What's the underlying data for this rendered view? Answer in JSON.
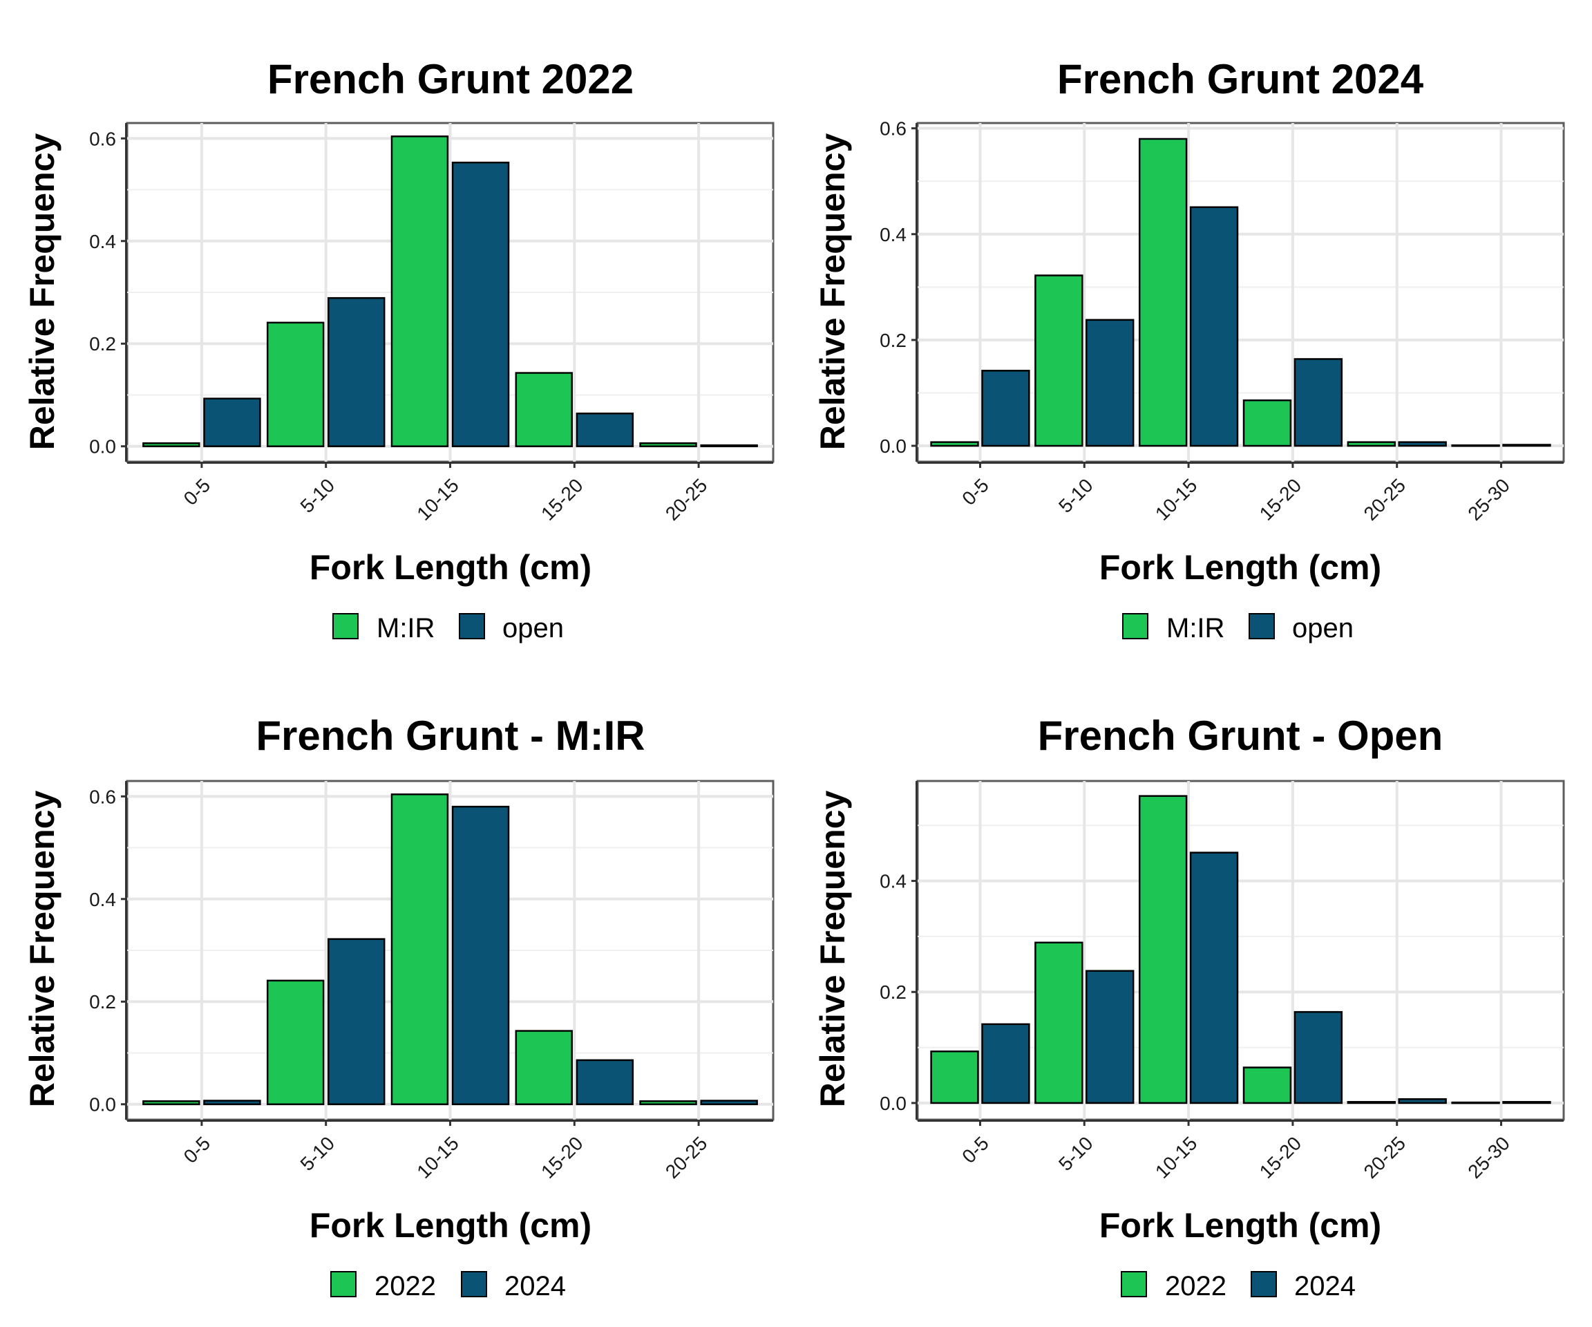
{
  "chart_data": [
    {
      "type": "bar",
      "title": "French Grunt 2022",
      "xlabel": "Fork Length (cm)",
      "ylabel": "Relative Frequency",
      "categories": [
        "0-5",
        "5-10",
        "10-15",
        "15-20",
        "20-25"
      ],
      "series": [
        {
          "name": "M:IR",
          "color": "#1dc654",
          "values": [
            0.006,
            0.241,
            0.604,
            0.143,
            0.006
          ]
        },
        {
          "name": "open",
          "color": "#0b5374",
          "values": [
            0.093,
            0.289,
            0.553,
            0.064,
            0.002
          ]
        }
      ],
      "ylim": [
        -0.03,
        0.63
      ],
      "yticks": [
        0.0,
        0.2,
        0.4,
        0.6
      ],
      "yticklabels": [
        "0.0",
        "0.2",
        "0.4",
        "0.6"
      ],
      "grid": true,
      "legend_position": "bottom"
    },
    {
      "type": "bar",
      "title": "French Grunt 2024",
      "xlabel": "Fork Length (cm)",
      "ylabel": "Relative Frequency",
      "categories": [
        "0-5",
        "5-10",
        "10-15",
        "15-20",
        "20-25",
        "25-30"
      ],
      "series": [
        {
          "name": "M:IR",
          "color": "#1dc654",
          "values": [
            0.007,
            0.322,
            0.58,
            0.086,
            0.007,
            0.001
          ]
        },
        {
          "name": "open",
          "color": "#0b5374",
          "values": [
            0.142,
            0.238,
            0.451,
            0.164,
            0.007,
            0.002
          ]
        }
      ],
      "ylim": [
        -0.03,
        0.61
      ],
      "yticks": [
        0.0,
        0.2,
        0.4,
        0.6
      ],
      "yticklabels": [
        "0.0",
        "0.2",
        "0.4",
        "0.6"
      ],
      "grid": true,
      "legend_position": "bottom"
    },
    {
      "type": "bar",
      "title": "French Grunt - M:IR",
      "xlabel": "Fork Length (cm)",
      "ylabel": "Relative Frequency",
      "categories": [
        "0-5",
        "5-10",
        "10-15",
        "15-20",
        "20-25"
      ],
      "series": [
        {
          "name": "2022",
          "color": "#1dc654",
          "values": [
            0.006,
            0.241,
            0.604,
            0.143,
            0.006
          ]
        },
        {
          "name": "2024",
          "color": "#0b5374",
          "values": [
            0.007,
            0.322,
            0.58,
            0.086,
            0.007
          ]
        }
      ],
      "ylim": [
        -0.03,
        0.63
      ],
      "yticks": [
        0.0,
        0.2,
        0.4,
        0.6
      ],
      "yticklabels": [
        "0.0",
        "0.2",
        "0.4",
        "0.6"
      ],
      "grid": true,
      "legend_position": "bottom"
    },
    {
      "type": "bar",
      "title": "French Grunt - Open",
      "xlabel": "Fork Length (cm)",
      "ylabel": "Relative Frequency",
      "categories": [
        "0-5",
        "5-10",
        "10-15",
        "15-20",
        "20-25",
        "25-30"
      ],
      "series": [
        {
          "name": "2022",
          "color": "#1dc654",
          "values": [
            0.093,
            0.289,
            0.553,
            0.064,
            0.002,
            0.001
          ]
        },
        {
          "name": "2024",
          "color": "#0b5374",
          "values": [
            0.142,
            0.238,
            0.451,
            0.164,
            0.007,
            0.002
          ]
        }
      ],
      "ylim": [
        -0.03,
        0.58
      ],
      "yticks": [
        0.0,
        0.2,
        0.4
      ],
      "yticklabels": [
        "0.0",
        "0.2",
        "0.4"
      ],
      "grid": true,
      "legend_position": "bottom"
    }
  ]
}
